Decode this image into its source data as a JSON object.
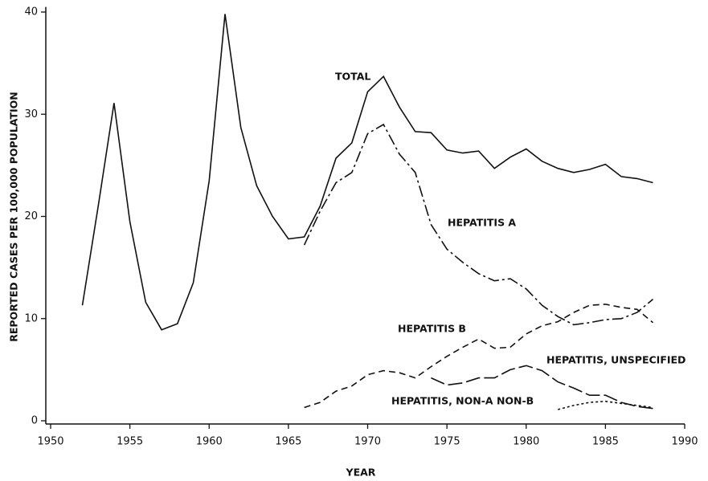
{
  "chart_data": {
    "type": "line",
    "xlabel": "YEAR",
    "ylabel": "REPORTED CASES PER 100,000 POPULATION",
    "x": [
      1952,
      1953,
      1954,
      1955,
      1956,
      1957,
      1958,
      1959,
      1960,
      1961,
      1962,
      1963,
      1964,
      1965,
      1966,
      1967,
      1968,
      1969,
      1970,
      1971,
      1972,
      1973,
      1974,
      1975,
      1976,
      1977,
      1978,
      1979,
      1980,
      1981,
      1982,
      1983,
      1984,
      1985,
      1986,
      1987,
      1988
    ],
    "series": [
      {
        "name": "TOTAL",
        "color": "#111111",
        "style": "solid",
        "values": [
          11.3,
          21,
          31.1,
          19.5,
          11.6,
          8.9,
          9.5,
          13.5,
          23.5,
          39.8,
          28.7,
          23,
          20,
          17.8,
          18.0,
          21,
          25.7,
          27.2,
          32.2,
          33.7,
          30.7,
          28.3,
          28.2,
          26.5,
          26.2,
          26.4,
          24.7,
          25.8,
          26.6,
          25.4,
          24.7,
          24.3,
          24.6,
          25.1,
          23.9,
          23.7,
          23.3
        ]
      },
      {
        "name": "HEPATITIS A",
        "color": "#111111",
        "style": "dashdot",
        "values": [
          null,
          null,
          null,
          null,
          null,
          null,
          null,
          null,
          null,
          null,
          null,
          null,
          null,
          null,
          17.2,
          20.5,
          23.3,
          24.3,
          28.1,
          29.0,
          26.1,
          24.3,
          19.2,
          16.8,
          15.5,
          14.4,
          13.7,
          13.9,
          12.9,
          11.3,
          10.2,
          9.4,
          9.6,
          9.9,
          10.0,
          10.6,
          11.9
        ]
      },
      {
        "name": "HEPATITIS B",
        "color": "#111111",
        "style": "dashed",
        "values": [
          null,
          null,
          null,
          null,
          null,
          null,
          null,
          null,
          null,
          null,
          null,
          null,
          null,
          null,
          1.3,
          1.8,
          2.9,
          3.4,
          4.5,
          4.9,
          4.7,
          4.2,
          5.3,
          6.3,
          7.2,
          8.0,
          7.1,
          7.2,
          8.5,
          9.3,
          9.7,
          10.6,
          11.3,
          11.4,
          11.1,
          10.9,
          9.6
        ]
      },
      {
        "name": "HEPATITIS, UNSPECIFIED",
        "color": "#111111",
        "style": "longdash",
        "values": [
          null,
          null,
          null,
          null,
          null,
          null,
          null,
          null,
          null,
          null,
          null,
          null,
          null,
          null,
          null,
          null,
          null,
          null,
          null,
          null,
          null,
          null,
          4.2,
          3.5,
          3.7,
          4.2,
          4.2,
          5.0,
          5.4,
          4.9,
          3.8,
          3.2,
          2.5,
          2.5,
          1.8,
          1.4,
          1.2
        ]
      },
      {
        "name": "HEPATITIS, NON-A NON-B",
        "color": "#111111",
        "style": "dotted",
        "values": [
          null,
          null,
          null,
          null,
          null,
          null,
          null,
          null,
          null,
          null,
          null,
          null,
          null,
          null,
          null,
          null,
          null,
          null,
          null,
          null,
          null,
          null,
          null,
          null,
          null,
          null,
          null,
          null,
          null,
          null,
          1.1,
          1.5,
          1.8,
          1.9,
          1.7,
          1.5,
          1.3
        ]
      }
    ],
    "xlim": [
      1950,
      1990
    ],
    "xticks": [
      1950,
      1955,
      1960,
      1965,
      1970,
      1975,
      1980,
      1985,
      1990
    ],
    "ylim": [
      0,
      40.5
    ],
    "yticks": [
      0,
      10,
      20,
      30,
      40
    ],
    "grid": false
  }
}
